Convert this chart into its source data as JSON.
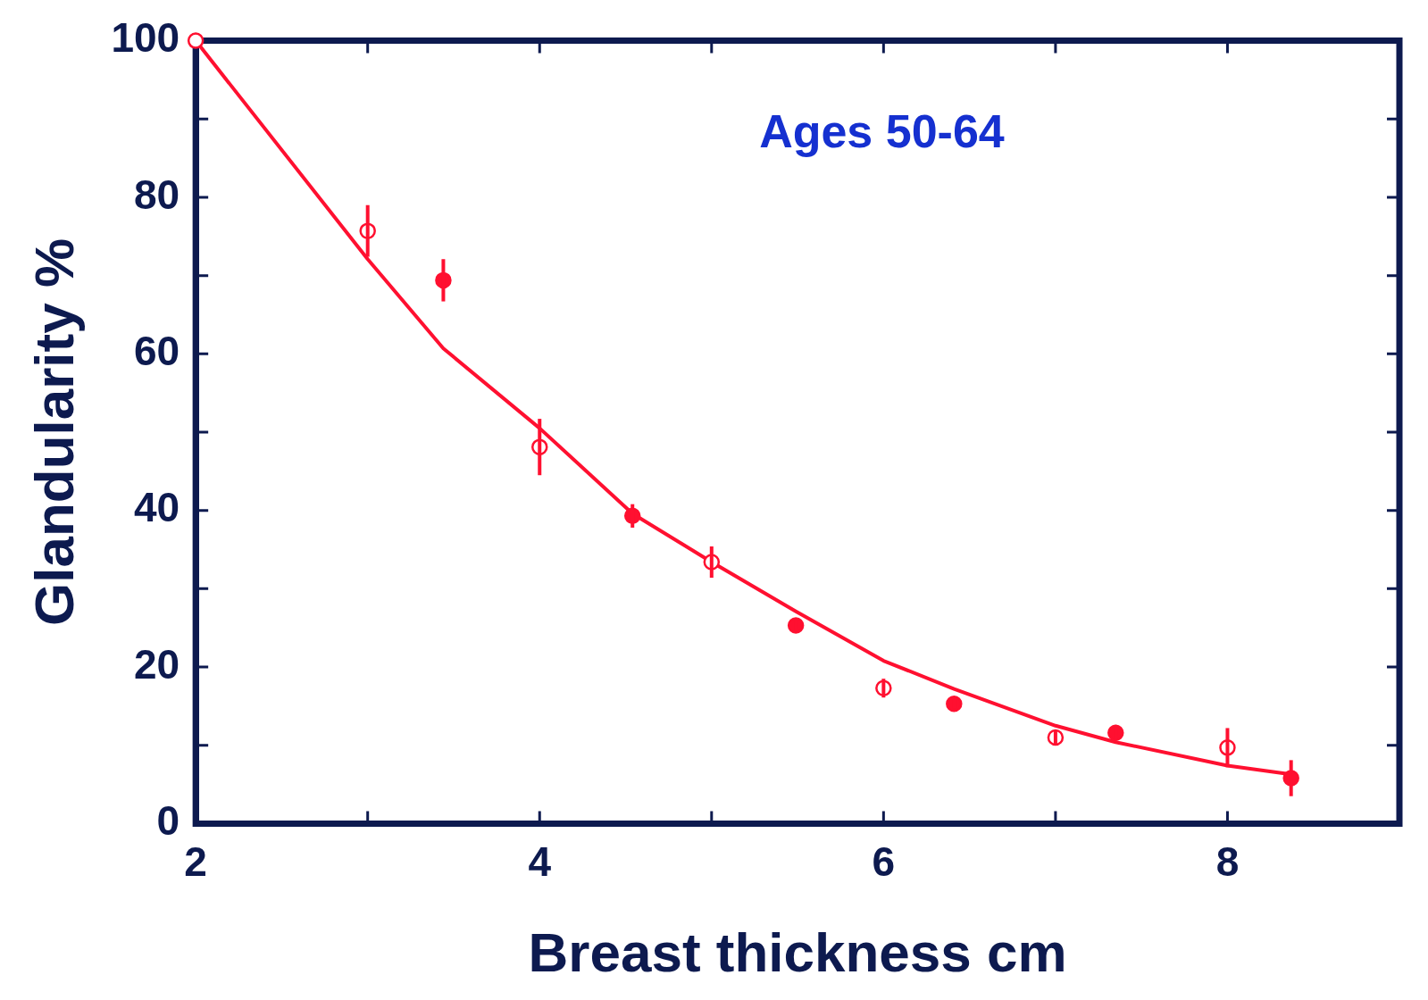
{
  "chart_data": {
    "type": "scatter",
    "xlabel": "Breast thickness cm",
    "ylabel": "Glandularity %",
    "annotations": [
      "Ages 50-64"
    ],
    "xlim": [
      2,
      9
    ],
    "xticks": [
      2,
      {
        "value": 3,
        "label": null
      },
      4,
      {
        "value": 5,
        "label": null
      },
      6,
      {
        "value": 7,
        "label": null
      },
      8,
      {
        "value": 9,
        "label": null
      }
    ],
    "ylim": [
      0,
      100
    ],
    "yticks": [
      0,
      {
        "value": 10,
        "label": null
      },
      20,
      {
        "value": 30,
        "label": null
      },
      40,
      {
        "value": 50,
        "label": null
      },
      60,
      {
        "value": 70,
        "label": null
      },
      80,
      {
        "value": 90,
        "label": null
      },
      100
    ],
    "grid": false,
    "legend": false,
    "marker": "circle",
    "series": [
      {
        "color": "#ff1030",
        "x": [
          2,
          3,
          4,
          5,
          6,
          7,
          8
        ],
        "values": [
          100,
          75.7,
          48.1,
          33.4,
          17.3,
          11.0,
          9.7
        ],
        "errors": [
          null,
          3.3,
          3.6,
          2,
          1.2,
          0.9,
          2.5
        ]
      },
      {
        "color": "#ff1030",
        "x": [
          3.44,
          4.54,
          5.49,
          6.41,
          7.35,
          8.37
        ],
        "values": [
          69.4,
          39.3,
          25.3,
          15.3,
          11.6,
          5.8
        ],
        "errors": [
          2.7,
          1.5,
          0.8,
          0.6,
          1,
          2.3
        ]
      },
      {
        "type": "line",
        "marker": "none",
        "color": "#ff1030",
        "x": [
          2,
          3,
          3.44,
          4,
          4.54,
          5,
          5.49,
          6,
          6.41,
          7,
          7.35,
          8,
          8.37
        ],
        "values": [
          100,
          72.1,
          60.7,
          50.5,
          39.6,
          33.4,
          27.1,
          20.8,
          17.2,
          12.5,
          10.4,
          7.4,
          6.3
        ]
      }
    ]
  }
}
